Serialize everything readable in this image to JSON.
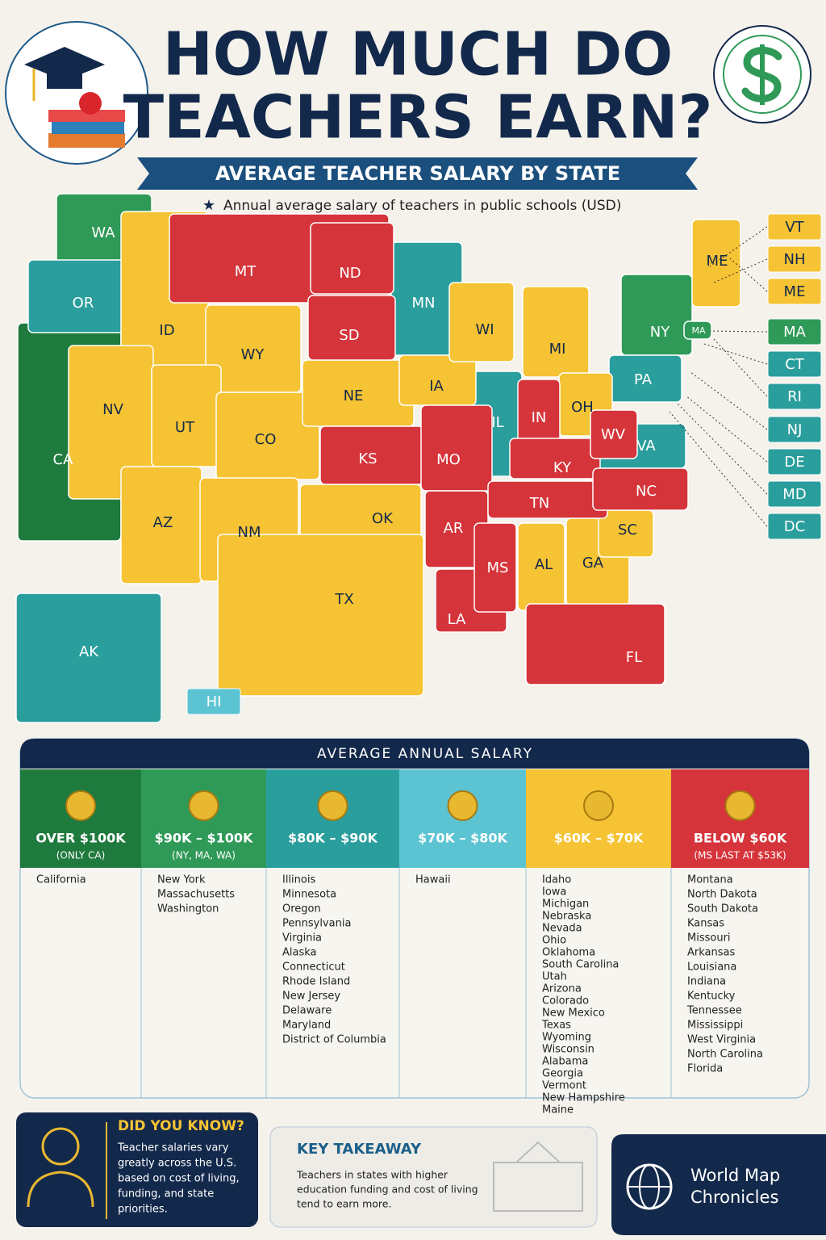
{
  "header": {
    "title_lines": [
      "HOW MUCH DO",
      "TEACHERS EARN?"
    ],
    "subtitle": "AVERAGE TEACHER SALARY BY STATE",
    "note": "Annual average salary of teachers in public schools (USD)"
  },
  "legend": {
    "title": "AVERAGE ANNUAL SALARY",
    "tiers": [
      {
        "label": "OVER $100K",
        "sublabel": "(ONLY CA)",
        "color": "#1f7a3e",
        "states": [
          "California"
        ],
        "map_labels": [
          "CA"
        ],
        "callouts": []
      },
      {
        "label": "$90K – $100K",
        "sublabel": "(NY, MA, WA)",
        "color": "#2f9a57",
        "states": [
          "New York",
          "Massachusetts",
          "Washington"
        ],
        "map_labels": [
          "WA",
          "NY",
          "MA"
        ],
        "callouts": [
          "MA"
        ]
      },
      {
        "label": "$80K – $90K",
        "sublabel": null,
        "color": "#2a9e9c",
        "states": [
          "Illinois",
          "Minnesota",
          "Oregon",
          "Pennsylvania",
          "Virginia",
          "Alaska",
          "Connecticut",
          "Rhode Island",
          "New Jersey",
          "Delaware",
          "Maryland",
          "District of Columbia"
        ],
        "map_labels": [
          "OR",
          "MN",
          "IL",
          "PA",
          "VA",
          "AK"
        ],
        "callouts": [
          "CT",
          "RI",
          "NJ",
          "DE",
          "MD",
          "DC"
        ]
      },
      {
        "label": "$70K – $80K",
        "sublabel": null,
        "color": "#5cc3d2",
        "states": [
          "Hawaii"
        ],
        "map_labels": [],
        "callouts": [
          "HI"
        ]
      },
      {
        "label": "$60K – $70K",
        "sublabel": null,
        "color": "#f5c333",
        "states": [
          "Idaho",
          "Iowa",
          "Michigan",
          "Nebraska",
          "Nevada",
          "Ohio",
          "Oklahoma",
          "South Carolina",
          "Utah",
          "Arizona",
          "Colorado",
          "New Mexico",
          "Texas",
          "Wyoming",
          "Wisconsin",
          "Alabama",
          "Georgia",
          "Vermont",
          "New Hampshire",
          "Maine"
        ],
        "map_labels": [
          "ID",
          "NV",
          "WY",
          "UT",
          "CO",
          "AZ",
          "NM",
          "NE",
          "IA",
          "WI",
          "MI",
          "OH",
          "OK",
          "TX",
          "AL",
          "GA",
          "SC",
          "ME"
        ],
        "callouts": [
          "VT",
          "NH",
          "ME"
        ]
      },
      {
        "label": "BELOW $60K",
        "sublabel": "(MS LAST AT $53K)",
        "color": "#d5343a",
        "states": [
          "Montana",
          "North Dakota",
          "South Dakota",
          "Kansas",
          "Missouri",
          "Arkansas",
          "Louisiana",
          "Indiana",
          "Kentucky",
          "Tennessee",
          "Mississippi",
          "West Virginia",
          "North Carolina",
          "Florida"
        ],
        "map_labels": [
          "MT",
          "ND",
          "SD",
          "KS",
          "MO",
          "AR",
          "LA",
          "MS",
          "IN",
          "KY",
          "WV",
          "TN",
          "NC",
          "FL"
        ],
        "callouts": []
      }
    ]
  },
  "did_you_know": {
    "title": "DID YOU KNOW?",
    "text_lines": [
      "Teacher salaries vary",
      "greatly across the U.S.",
      "based on cost of living,",
      "funding, and state",
      "priorities."
    ]
  },
  "key_takeaway": {
    "title": "KEY TAKEAWAY",
    "text_lines": [
      "Teachers in states with higher",
      "education funding and cost of living",
      "tend to earn more."
    ]
  },
  "brand": {
    "name_lines": [
      "World Map",
      "Chronicles"
    ]
  }
}
